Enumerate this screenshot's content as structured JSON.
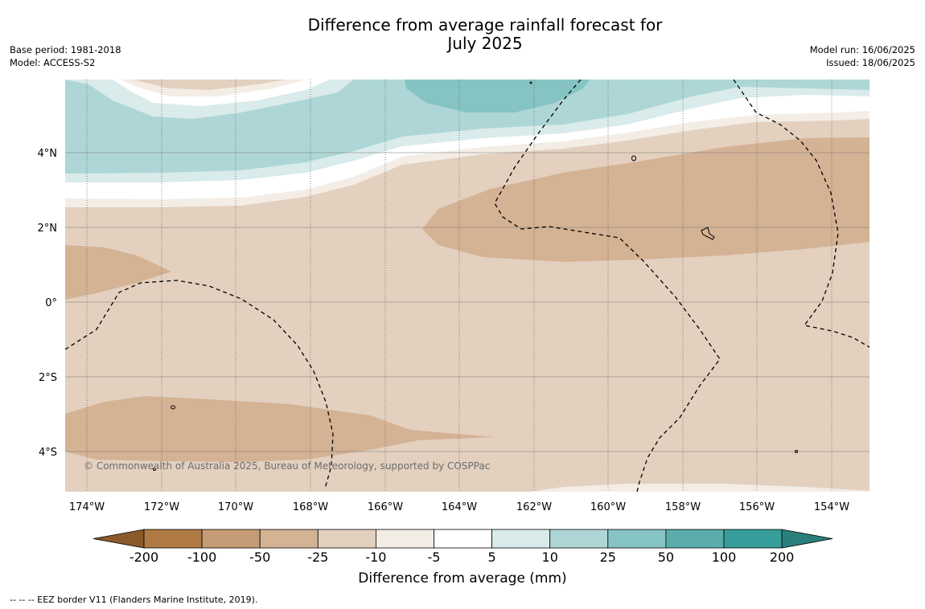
{
  "header": {
    "title_line1": "Difference from average rainfall forecast for",
    "title_line2": "July 2025",
    "base_period": "Base period: 1981-2018",
    "model": "Model: ACCESS-S2",
    "model_run": "Model run: 16/06/2025",
    "issued": "Issued: 18/06/2025"
  },
  "map": {
    "lat_labels": [
      "4°N",
      "2°N",
      "0°",
      "2°S",
      "4°S"
    ],
    "lon_labels": [
      "174°W",
      "172°W",
      "170°W",
      "168°W",
      "166°W",
      "164°W",
      "162°W",
      "160°W",
      "158°W",
      "156°W",
      "154°W"
    ],
    "copyright": "© Commonwealth of Australia 2025, Bureau of Meteorology, supported by COSPPac"
  },
  "colorbar": {
    "title": "Difference from average (mm)",
    "ticks": [
      "-200",
      "-100",
      "-50",
      "-25",
      "-10",
      "-5",
      "5",
      "10",
      "25",
      "50",
      "100",
      "200"
    ],
    "colors": [
      "#8b5a2b",
      "#b07a45",
      "#c69c76",
      "#d4b294",
      "#e3d0bf",
      "#f3ede6",
      "#ffffff",
      "#d9ebea",
      "#aed6d6",
      "#85c4c2",
      "#5aadab",
      "#379e9b",
      "#2a7f7c"
    ]
  },
  "footer": {
    "eez_note": "--  --  -- EEZ border V11 (Flanders Marine Institute, 2019)."
  }
}
